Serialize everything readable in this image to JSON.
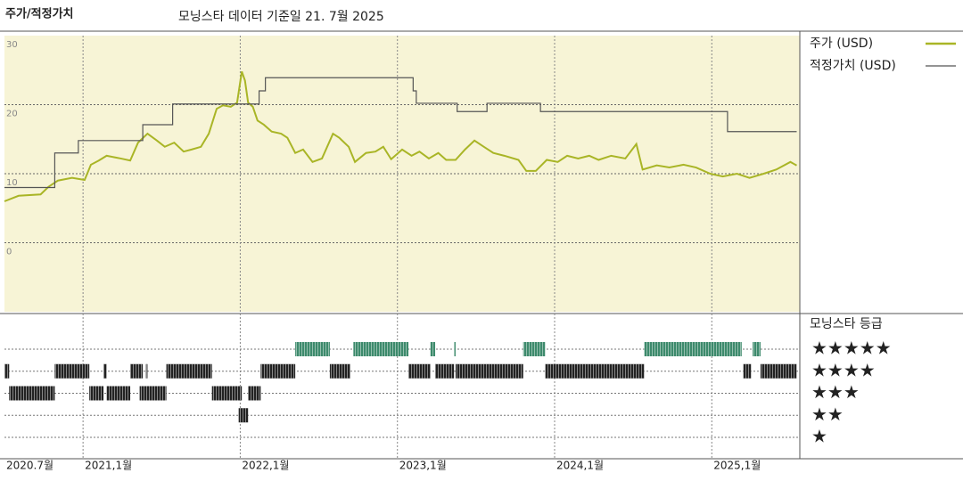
{
  "chart_data": {
    "type": "line",
    "title": "주가/적정가치",
    "subtitle": "모닝스타 데이터 기준일 21. 7월 2025",
    "xlim": [
      2020.5,
      2025.56
    ],
    "xticks": [
      {
        "value": 2020.5,
        "label": "2020.7월"
      },
      {
        "value": 2021.0,
        "label": "2021,1월"
      },
      {
        "value": 2022.0,
        "label": "2022,1월"
      },
      {
        "value": 2023.0,
        "label": "2023,1월"
      },
      {
        "value": 2024.0,
        "label": "2024,1월"
      },
      {
        "value": 2025.0,
        "label": "2025,1월"
      }
    ],
    "ylim": [
      -10,
      30
    ],
    "yticks": [
      0,
      10,
      20,
      30
    ],
    "grid": true,
    "series": [
      {
        "name": "주가 (USD)",
        "color": "#a9b526",
        "x": [
          2020.5,
          2020.59,
          2020.73,
          2020.78,
          2020.84,
          2020.93,
          2021.01,
          2021.05,
          2021.1,
          2021.15,
          2021.24,
          2021.3,
          2021.35,
          2021.41,
          2021.47,
          2021.52,
          2021.58,
          2021.64,
          2021.69,
          2021.75,
          2021.8,
          2021.85,
          2021.89,
          2021.94,
          2021.98,
          2022.01,
          2022.03,
          2022.05,
          2022.08,
          2022.11,
          2022.15,
          2022.2,
          2022.26,
          2022.3,
          2022.35,
          2022.4,
          2022.46,
          2022.52,
          2022.59,
          2022.63,
          2022.69,
          2022.73,
          2022.8,
          2022.86,
          2022.91,
          2022.96,
          2023.03,
          2023.09,
          2023.14,
          2023.2,
          2023.26,
          2023.31,
          2023.37,
          2023.43,
          2023.49,
          2023.55,
          2023.61,
          2023.68,
          2023.77,
          2023.82,
          2023.88,
          2023.95,
          2024.02,
          2024.08,
          2024.15,
          2024.22,
          2024.28,
          2024.36,
          2024.45,
          2024.52,
          2024.56,
          2024.65,
          2024.73,
          2024.82,
          2024.9,
          2024.99,
          2025.07,
          2025.16,
          2025.24,
          2025.33,
          2025.41,
          2025.5,
          2025.54
        ],
        "values": [
          6.0,
          6.8,
          7.0,
          8.1,
          9.0,
          9.4,
          9.1,
          11.3,
          11.9,
          12.6,
          12.2,
          11.9,
          14.5,
          15.8,
          14.8,
          13.9,
          14.5,
          13.2,
          13.5,
          13.9,
          15.8,
          19.4,
          19.9,
          19.7,
          20.3,
          24.8,
          23.5,
          20.3,
          19.7,
          17.7,
          17.1,
          16.1,
          15.8,
          15.2,
          13.0,
          13.5,
          11.7,
          12.2,
          15.8,
          15.2,
          13.9,
          11.7,
          13.0,
          13.2,
          13.9,
          12.1,
          13.5,
          12.6,
          13.2,
          12.2,
          13.0,
          12.0,
          12.0,
          13.5,
          14.8,
          13.9,
          13.0,
          12.6,
          12.0,
          10.4,
          10.4,
          12.0,
          11.7,
          12.6,
          12.2,
          12.6,
          12.0,
          12.6,
          12.2,
          14.3,
          10.6,
          11.2,
          10.9,
          11.3,
          10.9,
          10.0,
          9.6,
          10.0,
          9.4,
          10.0,
          10.6,
          11.7,
          11.2
        ]
      },
      {
        "name": "적정가치 (USD)",
        "color": "#555555",
        "step": true,
        "x": [
          2020.5,
          2020.82,
          2020.97,
          2021.38,
          2021.57,
          2022.12,
          2022.16,
          2023.1,
          2023.12,
          2023.38,
          2023.57,
          2023.91,
          2025.1,
          2025.54
        ],
        "values": [
          8.0,
          13.0,
          14.8,
          17.1,
          20.1,
          22.0,
          23.9,
          22.0,
          20.2,
          19.0,
          20.2,
          19.0,
          16.1,
          16.1
        ]
      }
    ],
    "ratings": {
      "title": "모닝스타 등급",
      "labels": [
        "★★★★★",
        "★★★★",
        "★★★",
        "★★",
        "★"
      ],
      "levels": [
        5,
        4,
        3,
        2,
        1
      ],
      "segments": [
        {
          "rating": 5,
          "start": 2022.35,
          "end": 2022.57,
          "color": "#3d8a6c"
        },
        {
          "rating": 5,
          "start": 2022.72,
          "end": 2023.07,
          "color": "#3d8a6c"
        },
        {
          "rating": 5,
          "start": 2023.21,
          "end": 2023.24,
          "color": "#3d8a6c"
        },
        {
          "rating": 5,
          "start": 2023.36,
          "end": 2023.37,
          "color": "#3d8a6c"
        },
        {
          "rating": 5,
          "start": 2023.8,
          "end": 2023.94,
          "color": "#3d8a6c"
        },
        {
          "rating": 5,
          "start": 2024.57,
          "end": 2025.19,
          "color": "#3d8a6c"
        },
        {
          "rating": 5,
          "start": 2025.26,
          "end": 2025.31,
          "color": "#3d8a6c"
        },
        {
          "rating": 4,
          "start": 2020.5,
          "end": 2020.53,
          "color": "#222222"
        },
        {
          "rating": 4,
          "start": 2020.82,
          "end": 2021.04,
          "color": "#222222"
        },
        {
          "rating": 4,
          "start": 2021.13,
          "end": 2021.15,
          "color": "#222222"
        },
        {
          "rating": 4,
          "start": 2021.3,
          "end": 2021.38,
          "color": "#222222"
        },
        {
          "rating": 4,
          "start": 2021.4,
          "end": 2021.41,
          "color": "#222222"
        },
        {
          "rating": 4,
          "start": 2021.53,
          "end": 2021.82,
          "color": "#222222"
        },
        {
          "rating": 4,
          "start": 2022.13,
          "end": 2022.35,
          "color": "#222222"
        },
        {
          "rating": 4,
          "start": 2022.57,
          "end": 2022.7,
          "color": "#222222"
        },
        {
          "rating": 4,
          "start": 2023.07,
          "end": 2023.21,
          "color": "#222222"
        },
        {
          "rating": 4,
          "start": 2023.24,
          "end": 2023.36,
          "color": "#222222"
        },
        {
          "rating": 4,
          "start": 2023.37,
          "end": 2023.8,
          "color": "#222222"
        },
        {
          "rating": 4,
          "start": 2023.94,
          "end": 2024.57,
          "color": "#222222"
        },
        {
          "rating": 4,
          "start": 2025.2,
          "end": 2025.25,
          "color": "#222222"
        },
        {
          "rating": 4,
          "start": 2025.31,
          "end": 2025.54,
          "color": "#222222"
        },
        {
          "rating": 3,
          "start": 2020.53,
          "end": 2020.82,
          "color": "#222222"
        },
        {
          "rating": 3,
          "start": 2021.04,
          "end": 2021.13,
          "color": "#222222"
        },
        {
          "rating": 3,
          "start": 2021.15,
          "end": 2021.3,
          "color": "#222222"
        },
        {
          "rating": 3,
          "start": 2021.36,
          "end": 2021.53,
          "color": "#222222"
        },
        {
          "rating": 3,
          "start": 2021.82,
          "end": 2022.01,
          "color": "#222222"
        },
        {
          "rating": 3,
          "start": 2022.05,
          "end": 2022.13,
          "color": "#222222"
        },
        {
          "rating": 2,
          "start": 2021.99,
          "end": 2022.05,
          "color": "#222222"
        }
      ]
    }
  }
}
